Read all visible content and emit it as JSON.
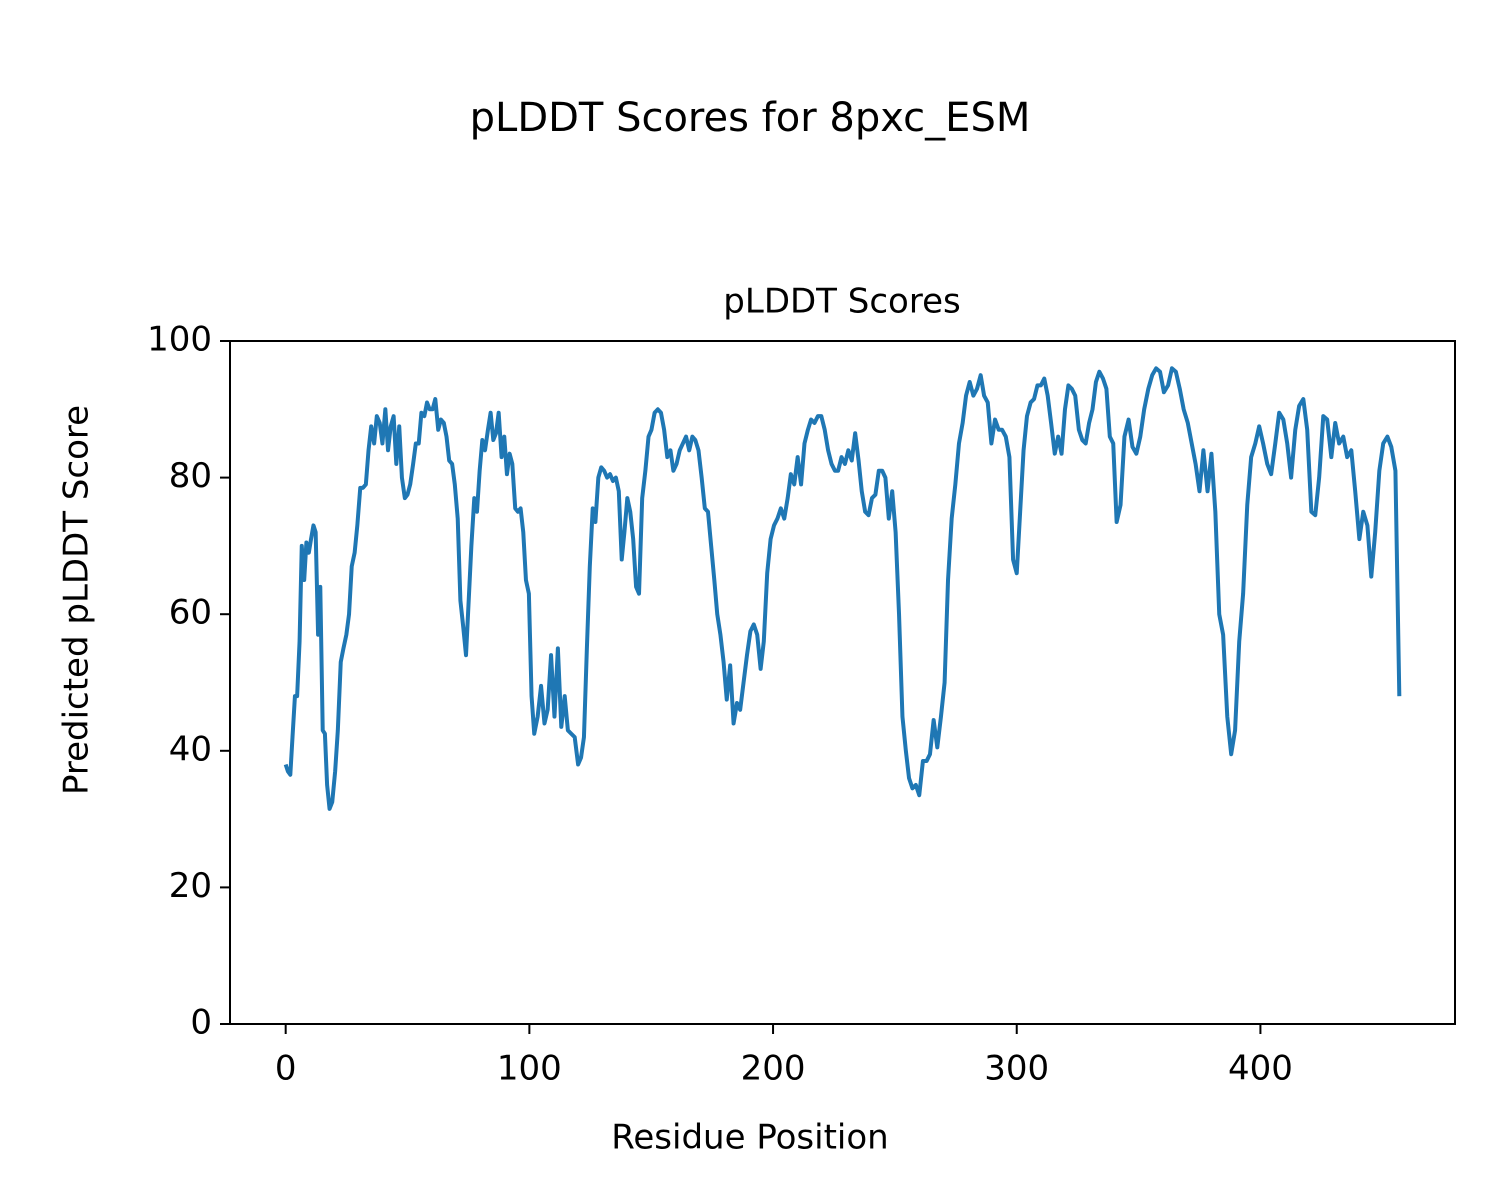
{
  "chart_data": {
    "type": "line",
    "suptitle": "pLDDT Scores for 8pxc_ESM",
    "title": "pLDDT Scores",
    "xlabel": "Residue Position",
    "ylabel": "Predicted pLDDT Score",
    "xlim": [
      -22.85,
      479.85
    ],
    "xticks": [
      0,
      100,
      200,
      300,
      400
    ],
    "ylim": [
      0,
      100
    ],
    "yticks": [
      0,
      20,
      40,
      60,
      80,
      100
    ],
    "grid": false,
    "x": [
      0,
      0.9,
      1.9,
      2.8,
      3.8,
      4.7,
      5.7,
      6.6,
      7.6,
      8.5,
      9.5,
      10.4,
      11.4,
      12.3,
      13.3,
      14.2,
      15.2,
      16.1,
      17,
      18,
      19.1,
      20.3,
      21.4,
      22.6,
      23.7,
      24.9,
      26,
      27.1,
      28.3,
      29.4,
      30.6,
      31.7,
      32.9,
      34,
      35.1,
      36.3,
      37.4,
      38.6,
      39.7,
      40.9,
      42,
      43.1,
      44.3,
      45.4,
      46.6,
      47.7,
      48.9,
      50,
      51.1,
      52.3,
      53.4,
      54.6,
      55.7,
      56.9,
      58,
      59.1,
      60.3,
      61.4,
      62.6,
      63.7,
      64.9,
      66,
      67.1,
      68.3,
      69.4,
      70.6,
      71.7,
      72.9,
      74,
      75.1,
      76.2,
      77.4,
      78.5,
      79.6,
      80.7,
      81.8,
      83,
      84.1,
      85.2,
      86.3,
      87.4,
      88.6,
      89.7,
      90.8,
      91.9,
      93,
      94.2,
      95.3,
      96.4,
      97.5,
      98.6,
      99.8,
      100.9,
      102,
      103.4,
      104.8,
      106.2,
      107.5,
      108.9,
      110.3,
      111.7,
      113.1,
      114.5,
      115.8,
      117.2,
      118.6,
      120,
      121.2,
      122.4,
      123.6,
      124.8,
      126,
      127.1,
      128.3,
      129.5,
      130.7,
      131.9,
      133.1,
      134.3,
      135.5,
      136.7,
      137.9,
      139,
      140.2,
      141.4,
      142.6,
      143.8,
      145,
      146.3,
      147.6,
      148.9,
      150.1,
      151.4,
      152.7,
      154,
      155.3,
      156.6,
      157.9,
      159.1,
      160.4,
      161.7,
      163,
      164.3,
      165.6,
      166.9,
      168.1,
      169.4,
      170.7,
      172,
      173.3,
      174.6,
      175.9,
      177.1,
      178.4,
      179.7,
      181,
      182.4,
      183.8,
      185.2,
      186.5,
      187.9,
      189.3,
      190.7,
      192.1,
      193.5,
      194.9,
      196.2,
      197.6,
      199,
      200.4,
      201.8,
      203.2,
      204.6,
      206,
      207.3,
      208.7,
      210.1,
      211.5,
      212.9,
      214.3,
      215.6,
      217,
      218.4,
      219.8,
      221.2,
      222.6,
      224,
      225.4,
      226.7,
      228.1,
      229.5,
      230.9,
      232.3,
      233.7,
      235.1,
      236.4,
      237.8,
      239.2,
      240.6,
      242,
      243.4,
      244.8,
      246.1,
      247.5,
      248.9,
      250.3,
      251.7,
      253.1,
      254.5,
      255.8,
      257.2,
      258.6,
      260,
      261.5,
      263,
      264.4,
      265.9,
      267.4,
      268.9,
      270.4,
      271.8,
      273.3,
      274.8,
      276.3,
      277.8,
      279.2,
      280.7,
      282.2,
      283.7,
      285.2,
      286.6,
      288.1,
      289.6,
      291.1,
      292.6,
      294,
      295.5,
      297,
      298.5,
      300,
      301.4,
      302.8,
      304.2,
      305.7,
      307.1,
      308.5,
      309.9,
      311.3,
      312.7,
      314.1,
      315.6,
      317,
      318.4,
      319.8,
      321.2,
      322.6,
      324,
      325.5,
      326.9,
      328.3,
      329.7,
      331.1,
      332.5,
      333.9,
      335.4,
      336.8,
      338.2,
      339.6,
      341,
      342.6,
      344.2,
      345.9,
      347.5,
      349.1,
      350.7,
      352.3,
      354,
      355.6,
      357.2,
      358.8,
      360.4,
      362.1,
      363.7,
      365.3,
      366.9,
      368.5,
      370.2,
      371.8,
      373.4,
      375,
      376.6,
      378.3,
      379.9,
      381.5,
      383.1,
      384.7,
      386.4,
      388,
      389.6,
      391.3,
      392.9,
      394.6,
      396.2,
      397.9,
      399.5,
      401.1,
      402.8,
      404.4,
      406.1,
      407.7,
      409.4,
      411,
      412.6,
      414.3,
      415.9,
      417.6,
      419.2,
      420.9,
      422.5,
      424.1,
      425.8,
      427.4,
      429.1,
      430.7,
      432.3,
      434,
      435.6,
      437.3,
      438.9,
      440.6,
      442.2,
      443.9,
      445.5,
      447.1,
      448.8,
      450.4,
      452.1,
      453.7,
      455.4,
      457
    ],
    "series": [
      {
        "name": "pLDDT",
        "color": "#1f77b4",
        "values": [
          38,
          37,
          36.5,
          42,
          48,
          48,
          56,
          70,
          65,
          70.5,
          69,
          71,
          73,
          72,
          57,
          64,
          43,
          42.5,
          35,
          31.5,
          32.5,
          37,
          43,
          53,
          55,
          57,
          60,
          67,
          69,
          73,
          78.5,
          78.5,
          79,
          84,
          87.5,
          85,
          89,
          88,
          85,
          90,
          84,
          87.5,
          89,
          82,
          87.5,
          80,
          77,
          77.5,
          79,
          82,
          85,
          85,
          89.5,
          89,
          91,
          90,
          90,
          91.5,
          87,
          88.5,
          88,
          86,
          82.5,
          82,
          79,
          74,
          62,
          58,
          54,
          62,
          70,
          77,
          75,
          81,
          85.5,
          84,
          87,
          89.5,
          85.5,
          86.5,
          89.5,
          83,
          86,
          80.5,
          83.5,
          82,
          75.5,
          75,
          75.5,
          72,
          65,
          63,
          48,
          42.5,
          45,
          49.5,
          44,
          46,
          54,
          45,
          55,
          43.5,
          48,
          43,
          42.5,
          42,
          38,
          39,
          42,
          55,
          67,
          75.5,
          73.5,
          80,
          81.5,
          81,
          80,
          80.5,
          79.5,
          80,
          78,
          68,
          72,
          77,
          75,
          71,
          64,
          63,
          77,
          81,
          86,
          87,
          89.5,
          90,
          89.5,
          87,
          83,
          84,
          81,
          82,
          84,
          85,
          86,
          84,
          86,
          85.5,
          84,
          80,
          75.5,
          75,
          70,
          65,
          60,
          57,
          53,
          47.5,
          52.5,
          44,
          47,
          46,
          50,
          54,
          57.5,
          58.5,
          57,
          52,
          56,
          66,
          71,
          73,
          74,
          75.5,
          74,
          77,
          80.5,
          79,
          83,
          79,
          85,
          87,
          88.5,
          88,
          89,
          89,
          87,
          84,
          82,
          81,
          81,
          83,
          82,
          84,
          82.5,
          86.5,
          82.5,
          78,
          75,
          74.5,
          77,
          77.5,
          81,
          81,
          80,
          74,
          78,
          72,
          60,
          45,
          40,
          36,
          34.5,
          35,
          33.5,
          38.5,
          38.5,
          39.5,
          44.5,
          40.5,
          45,
          50,
          65,
          74,
          79,
          85,
          88,
          92,
          94,
          92,
          93,
          95,
          92,
          91,
          85,
          88.5,
          87,
          87,
          86,
          83,
          68,
          66,
          75,
          84,
          89,
          91,
          91.5,
          93.5,
          93.5,
          94.5,
          92,
          88,
          83.5,
          86,
          83.5,
          90,
          93.5,
          93,
          92,
          87,
          85.5,
          85,
          88,
          90,
          94,
          95.5,
          94.5,
          93,
          86,
          85,
          73.5,
          76,
          86,
          88.5,
          84.5,
          83.5,
          86,
          90,
          93,
          95,
          96,
          95.5,
          92.5,
          93.5,
          96,
          95.5,
          93,
          90,
          88,
          85,
          82,
          78,
          84,
          78,
          83.5,
          75,
          60,
          57,
          45,
          39.5,
          43,
          56,
          63,
          76,
          83,
          85,
          87.5,
          85,
          82,
          80.5,
          85,
          89.5,
          88.5,
          85,
          80,
          87,
          90.5,
          91.5,
          87,
          75,
          74.5,
          80,
          89,
          88.5,
          83,
          88,
          85,
          86,
          83,
          84,
          78,
          71,
          75,
          73,
          65.5,
          72,
          81,
          85,
          86,
          84.5,
          81,
          48
        ]
      }
    ]
  }
}
